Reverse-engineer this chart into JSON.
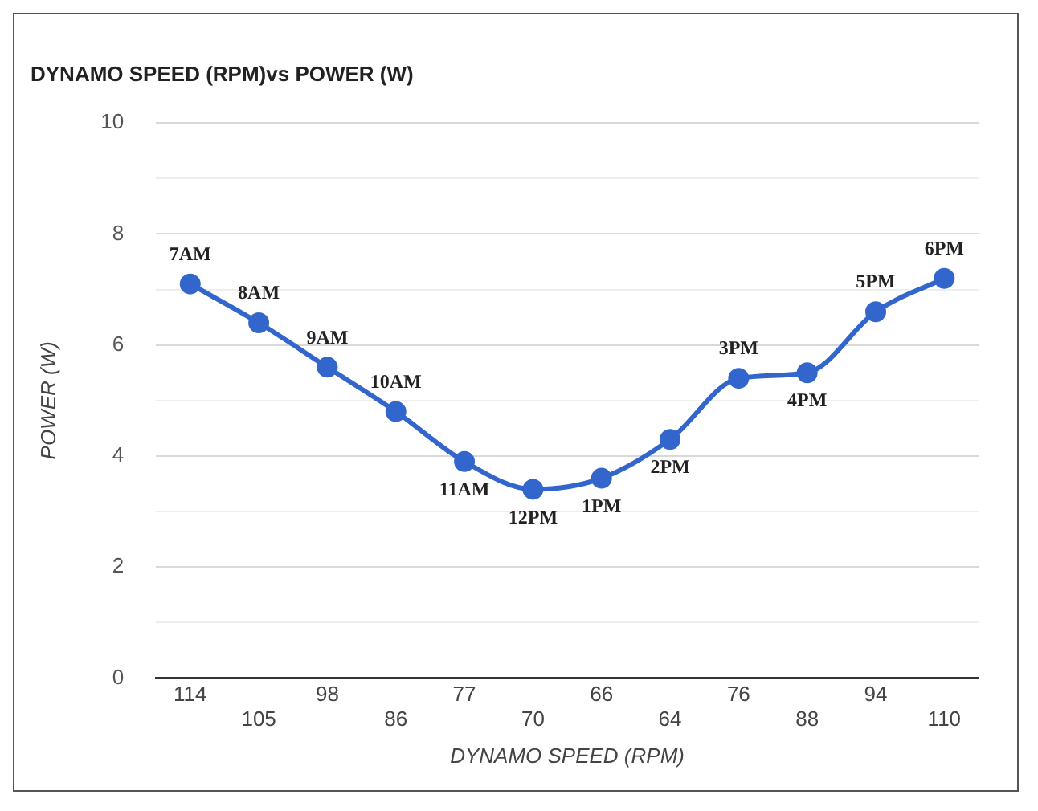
{
  "chart_data": {
    "type": "line",
    "title": "DYNAMO SPEED (RPM)vs POWER (W)",
    "xlabel": "DYNAMO SPEED (RPM)",
    "ylabel": "POWER (W)",
    "categories": [
      "114",
      "105",
      "98",
      "86",
      "77",
      "70",
      "66",
      "64",
      "76",
      "88",
      "94",
      "110"
    ],
    "series": [
      {
        "color": "#3366cc",
        "values": [
          7.1,
          6.4,
          5.6,
          4.8,
          3.9,
          3.4,
          3.6,
          4.3,
          5.4,
          5.5,
          6.6,
          7.2
        ]
      }
    ],
    "ylim": [
      0,
      10
    ],
    "yticks": [
      0,
      {
        "value": 1,
        "label": null
      },
      2,
      {
        "value": 3,
        "label": null
      },
      4,
      {
        "value": 5,
        "label": null
      },
      6,
      {
        "value": 7,
        "label": null
      },
      8,
      {
        "value": 9,
        "label": null
      },
      10
    ],
    "grid": "y",
    "legend": false,
    "marker": "circle",
    "line_style": "solid",
    "annotations": [
      {
        "text": "7AM",
        "x": "114",
        "y": 7.1
      },
      {
        "text": "8AM",
        "x": "105",
        "y": 6.4
      },
      {
        "text": "9AM",
        "x": "98",
        "y": 5.6
      },
      {
        "text": "10AM",
        "x": "86",
        "y": 4.8
      },
      {
        "text": "11AM",
        "x": "77",
        "y": 3.9
      },
      {
        "text": "12PM",
        "x": "70",
        "y": 3.4
      },
      {
        "text": "1PM",
        "x": "66",
        "y": 3.6
      },
      {
        "text": "2PM",
        "x": "64",
        "y": 4.3
      },
      {
        "text": "3PM",
        "x": "76",
        "y": 5.4
      },
      {
        "text": "4PM",
        "x": "88",
        "y": 5.5
      },
      {
        "text": "5PM",
        "x": "94",
        "y": 6.6
      },
      {
        "text": "6PM",
        "x": "110",
        "y": 7.2
      }
    ]
  }
}
